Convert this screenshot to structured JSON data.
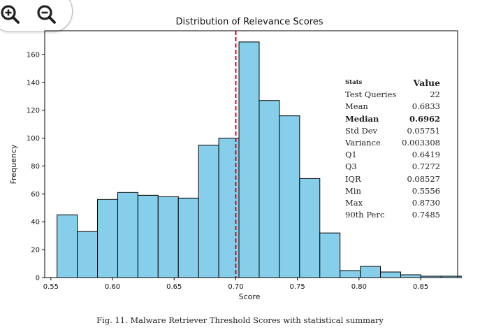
{
  "toolbar": {
    "zoom_in_icon": "zoom-in-icon",
    "zoom_out_icon": "zoom-out-icon"
  },
  "chart_data": {
    "type": "bar",
    "title": "Distribution of Relevance Scores",
    "xlabel": "Score",
    "ylabel": "Frequency",
    "bin_edges": [
      0.555,
      0.5714,
      0.5878,
      0.6042,
      0.6206,
      0.637,
      0.6534,
      0.6698,
      0.6862,
      0.7026,
      0.719,
      0.7354,
      0.7518,
      0.7682,
      0.7846,
      0.801,
      0.8174,
      0.8338,
      0.8502,
      0.8666
    ],
    "values": [
      45,
      33,
      56,
      61,
      59,
      58,
      57,
      95,
      100,
      169,
      127,
      116,
      71,
      32,
      5,
      8,
      4,
      2,
      1,
      1
    ],
    "xlim": [
      0.545,
      0.88
    ],
    "ylim": [
      0,
      177
    ],
    "xticks": [
      0.55,
      0.6,
      0.65,
      0.7,
      0.75,
      0.8,
      0.85
    ],
    "xtick_labels": [
      "0.55",
      "0.60",
      "0.65",
      "0.70",
      "0.75",
      "0.80",
      "0.85"
    ],
    "yticks": [
      0,
      20,
      40,
      60,
      80,
      100,
      120,
      140,
      160
    ],
    "ytick_labels": [
      "0",
      "20",
      "40",
      "60",
      "80",
      "100",
      "120",
      "140",
      "160"
    ],
    "threshold_line": {
      "x": 0.7,
      "color": "#e8000b",
      "style": "dashed"
    },
    "bar_color": "#87ceeb",
    "grid": false,
    "stats_table": {
      "header": [
        "Stats",
        "Value"
      ],
      "rows": [
        {
          "label": "Test Queries",
          "value": "22",
          "bold": false
        },
        {
          "label": "Mean",
          "value": "0.6833",
          "bold": false
        },
        {
          "label": "Median",
          "value": "0.6962",
          "bold": true
        },
        {
          "label": "Std Dev",
          "value": "0.05751",
          "bold": false
        },
        {
          "label": "Variance",
          "value": "0.003308",
          "bold": false
        },
        {
          "label": "Q1",
          "value": "0.6419",
          "bold": false
        },
        {
          "label": "Q3",
          "value": "0.7272",
          "bold": false
        },
        {
          "label": "IQR",
          "value": "0.08527",
          "bold": false
        },
        {
          "label": "Min",
          "value": "0.5556",
          "bold": false
        },
        {
          "label": "Max",
          "value": "0.8730",
          "bold": false
        },
        {
          "label": "90th Perc",
          "value": "0.7485",
          "bold": false
        }
      ]
    }
  },
  "caption": "Fig. 11.  Malware Retriever Threshold Scores with statistical summary"
}
